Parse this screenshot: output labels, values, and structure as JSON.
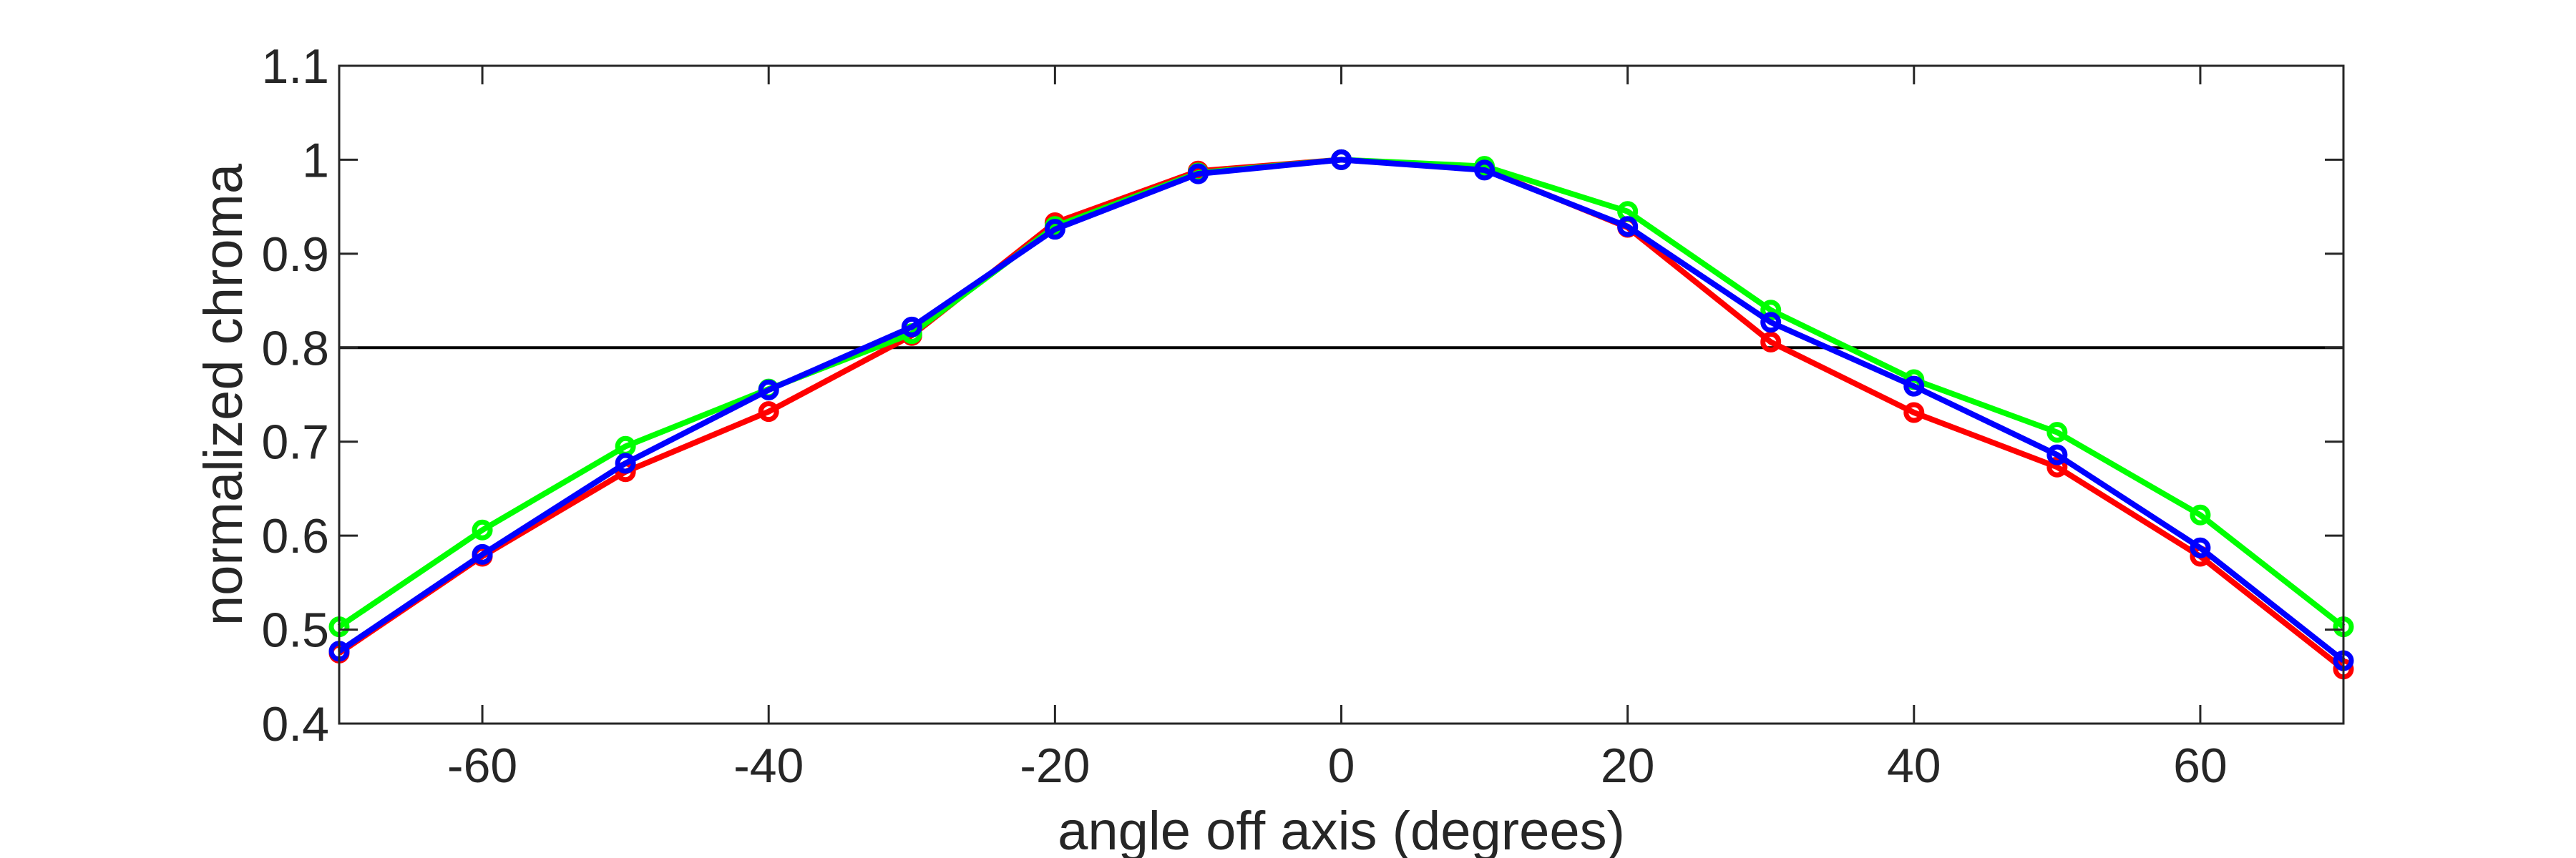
{
  "chart_data": {
    "type": "line",
    "title": "",
    "xlabel": "angle off axis (degrees)",
    "ylabel": "normalized chroma",
    "xlim": [
      -70,
      70
    ],
    "ylim": [
      0.4,
      1.1
    ],
    "xticks": [
      -60,
      -40,
      -20,
      0,
      20,
      40,
      60
    ],
    "xtick_labels": [
      "-60",
      "-40",
      "-20",
      "0",
      "20",
      "40",
      "60"
    ],
    "yticks": [
      0.4,
      0.5,
      0.6,
      0.7,
      0.8,
      0.9,
      1.0,
      1.1
    ],
    "ytick_labels": [
      "0.4",
      "0.5",
      "0.6",
      "0.7",
      "0.8",
      "0.9",
      "1",
      "1.1"
    ],
    "reference_line": {
      "y": 0.8,
      "color": "#000000"
    },
    "grid": false,
    "legend": "none",
    "x": [
      -70,
      -60,
      -50,
      -40,
      -30,
      -20,
      -10,
      0,
      10,
      20,
      30,
      40,
      50,
      60,
      70
    ],
    "series": [
      {
        "color": "#ff0000",
        "values": [
          0.475,
          0.578,
          0.668,
          0.732,
          0.813,
          0.933,
          0.988,
          1.0,
          0.99,
          0.928,
          0.806,
          0.731,
          0.673,
          0.578,
          0.458
        ]
      },
      {
        "color": "#00ff00",
        "values": [
          0.503,
          0.606,
          0.695,
          0.756,
          0.815,
          0.929,
          0.986,
          1.0,
          0.993,
          0.945,
          0.84,
          0.766,
          0.71,
          0.622,
          0.503
        ]
      },
      {
        "color": "#0000ff",
        "values": [
          0.477,
          0.58,
          0.677,
          0.755,
          0.822,
          0.926,
          0.985,
          1.0,
          0.989,
          0.929,
          0.827,
          0.759,
          0.686,
          0.587,
          0.467
        ]
      }
    ]
  }
}
